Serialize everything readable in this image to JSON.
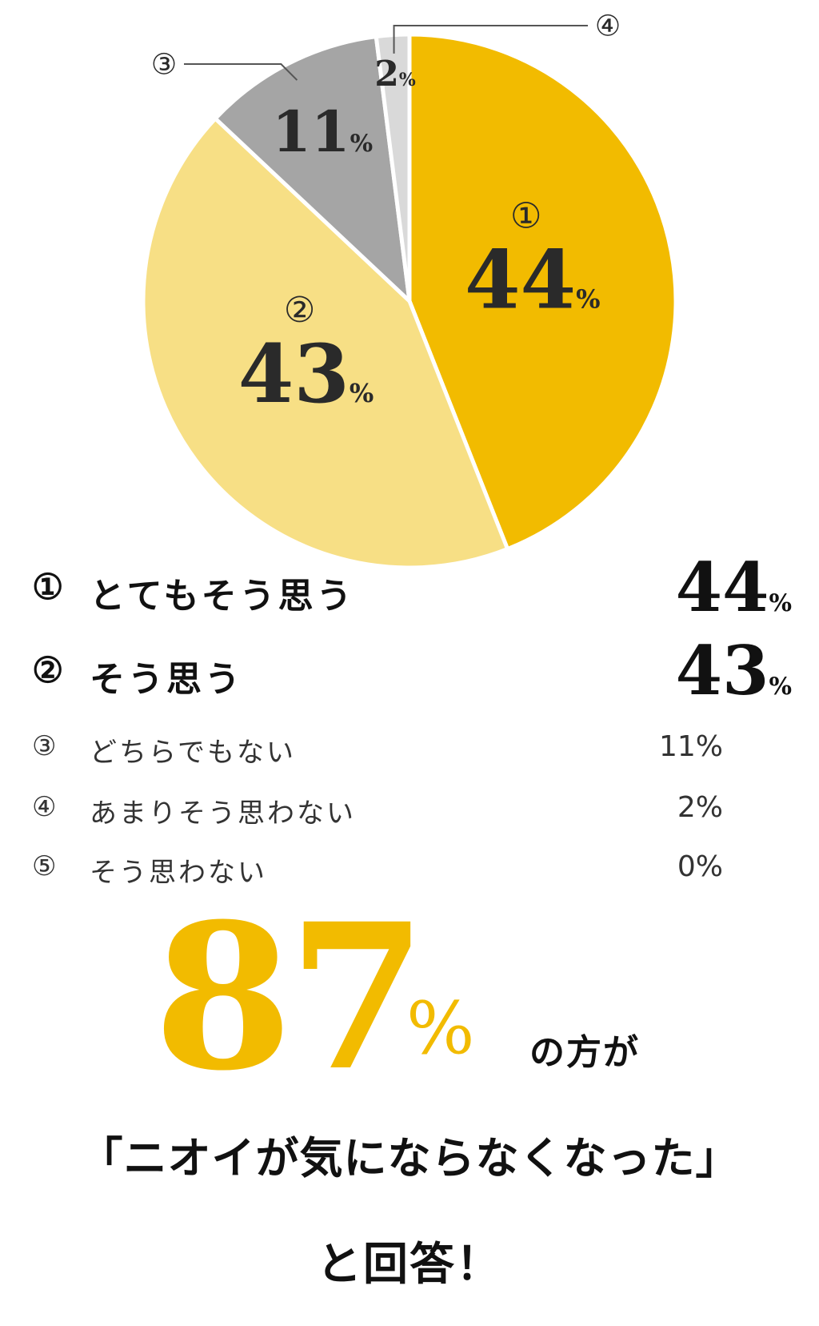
{
  "chart_data": {
    "type": "pie",
    "colors": [
      "#f2bb00",
      "#f7df85",
      "#a5a5a5",
      "#d9d9d9",
      "#cccccc"
    ],
    "slices": [
      {
        "marker": "①",
        "label": "とてもそう思う",
        "value": 44,
        "value_text": "44",
        "pct_text": "%"
      },
      {
        "marker": "②",
        "label": "そう思う",
        "value": 43,
        "value_text": "43",
        "pct_text": "%"
      },
      {
        "marker": "③",
        "label": "どちらでもない",
        "value": 11,
        "value_text": "11",
        "pct_text": "%"
      },
      {
        "marker": "④",
        "label": "あまりそう思わない",
        "value": 2,
        "value_text": "2",
        "pct_text": "%"
      },
      {
        "marker": "⑤",
        "label": "そう思わない",
        "value": 0,
        "value_text": "0",
        "pct_text": "%"
      }
    ]
  },
  "legend": [
    {
      "marker": "①",
      "label": "とてもそう思う",
      "value": "44",
      "pct": "%"
    },
    {
      "marker": "②",
      "label": "そう思う",
      "value": "43",
      "pct": "%"
    },
    {
      "marker": "③",
      "label": "どちらでもない",
      "value": "11%"
    },
    {
      "marker": "④",
      "label": "あまりそう思わない",
      "value": "2%"
    },
    {
      "marker": "⑤",
      "label": "そう思わない",
      "value": "0%"
    }
  ],
  "summary": {
    "big_number": "87",
    "big_percent": "%",
    "suffix": "の方が",
    "quote": "「ニオイが気にならなくなった」",
    "answer": "と回答！"
  }
}
